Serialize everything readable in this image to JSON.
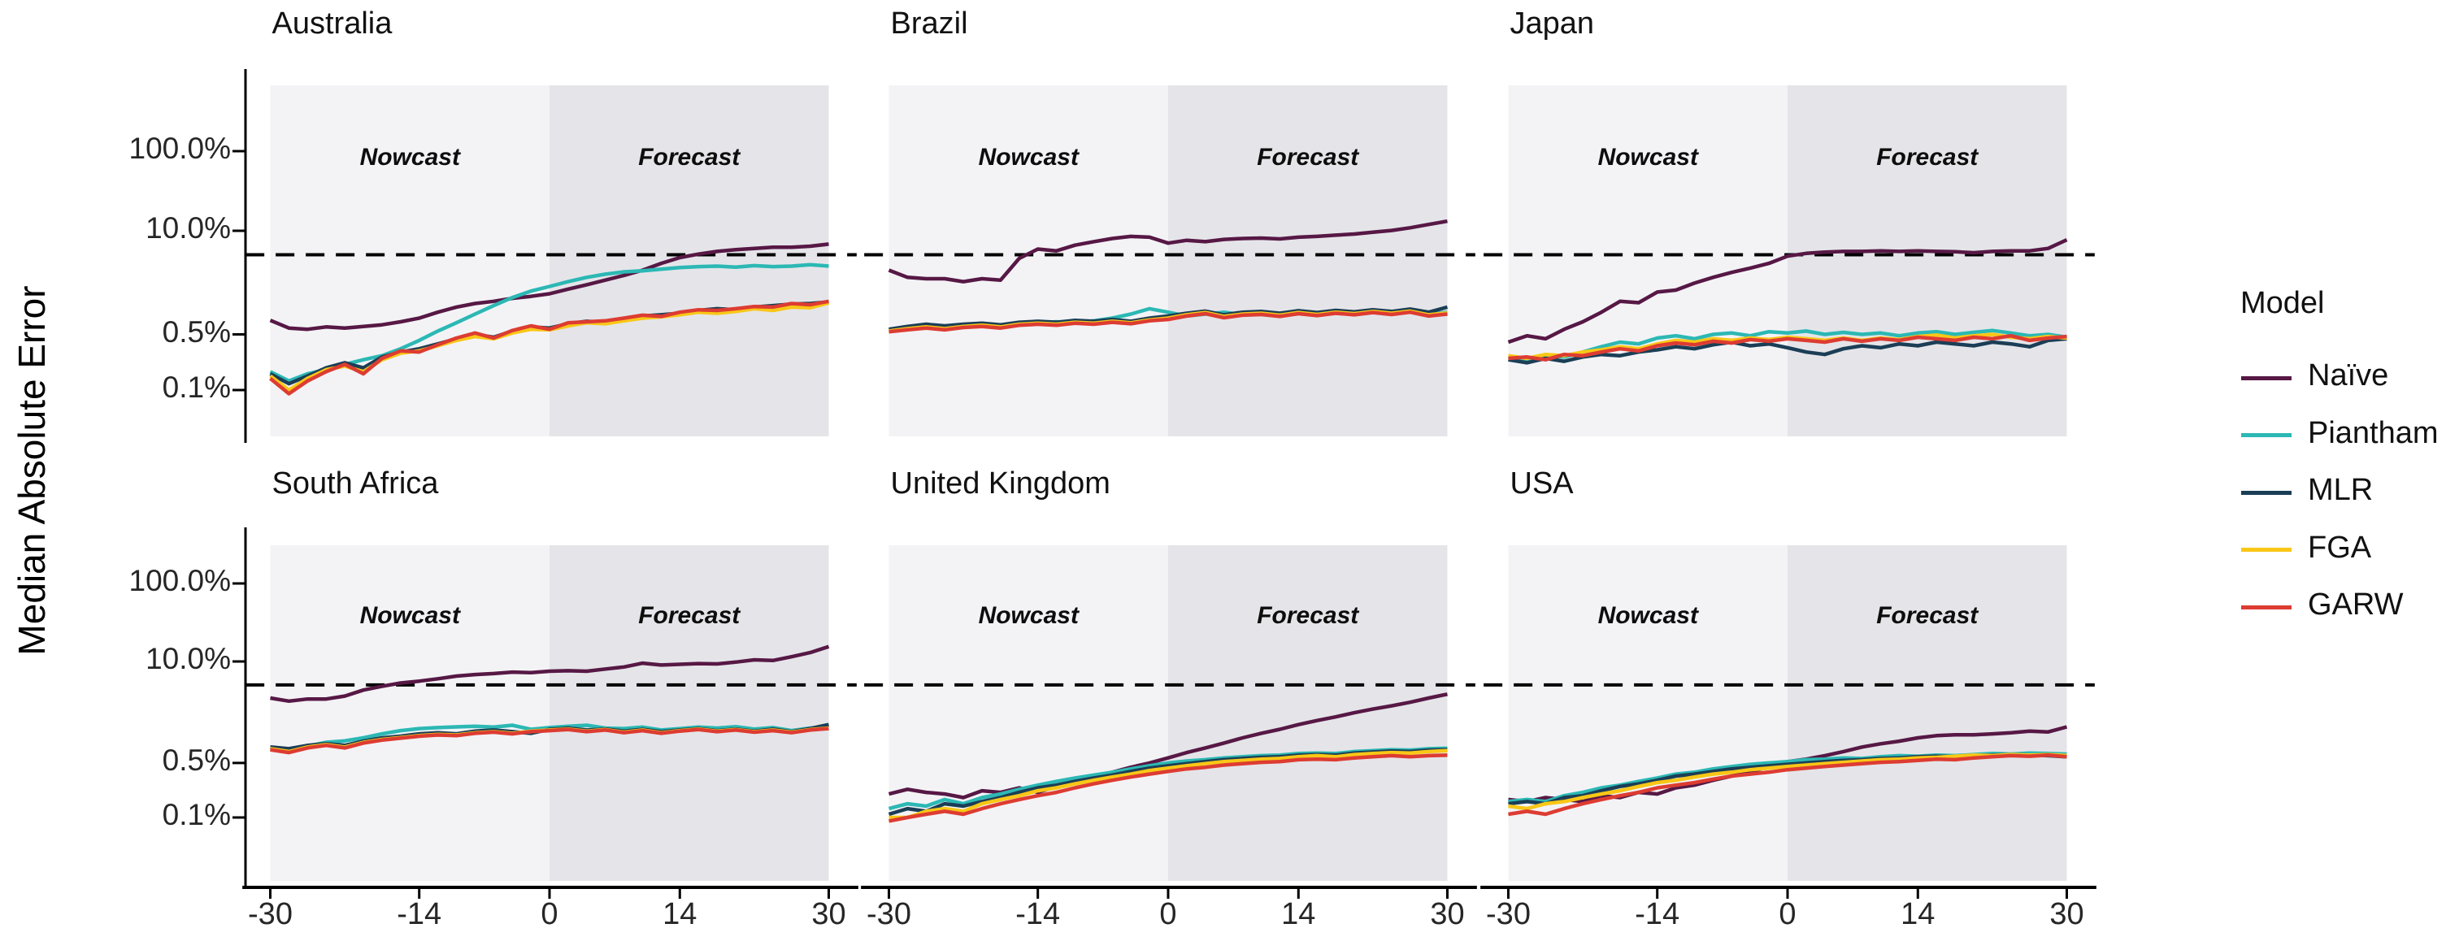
{
  "figure": {
    "y_axis_title": "Median Absolute Error",
    "legend": {
      "title": "Model"
    },
    "region_labels": {
      "nowcast": "Nowcast",
      "forecast": "Forecast"
    },
    "y_ticks": [
      {
        "label": "100.0%",
        "value": 100
      },
      {
        "label": "10.0%",
        "value": 10
      },
      {
        "label": "0.5%",
        "value": 0.5
      },
      {
        "label": "0.1%",
        "value": 0.1
      }
    ],
    "x_ticks": [
      {
        "label": "-30",
        "value": -30
      },
      {
        "label": "-14",
        "value": -14
      },
      {
        "label": "0",
        "value": 0
      },
      {
        "label": "14",
        "value": 14
      },
      {
        "label": "30",
        "value": 30
      }
    ],
    "colors": {
      "nowcast_bg": "#f3f3f6",
      "forecast_bg": "#e5e5e9",
      "axis": "#000000",
      "threshold_line": "#000000"
    }
  },
  "chart_data": {
    "type": "line",
    "y_scale": "log10",
    "y_unit": "percent",
    "xlabel": "",
    "ylabel": "Median Absolute Error",
    "x_range": [
      -30,
      30
    ],
    "threshold_percent": 5,
    "legend_position": "right",
    "x": [
      -30,
      -28,
      -26,
      -24,
      -22,
      -20,
      -18,
      -16,
      -14,
      -12,
      -10,
      -8,
      -6,
      -4,
      -2,
      0,
      2,
      4,
      6,
      8,
      10,
      12,
      14,
      16,
      18,
      20,
      22,
      24,
      26,
      28,
      30
    ],
    "series_order": [
      "Naïve",
      "Piantham",
      "MLR",
      "FGA",
      "GARW"
    ],
    "series_colors": {
      "Naïve": "#571845",
      "Piantham": "#2cb8b4",
      "MLR": "#1b3e56",
      "FGA": "#f9c716",
      "GARW": "#dd3c32"
    },
    "panels": [
      {
        "title": "Australia",
        "series": {
          "Naïve": [
            0.75,
            0.6,
            0.58,
            0.62,
            0.6,
            0.63,
            0.66,
            0.72,
            0.8,
            0.95,
            1.1,
            1.22,
            1.3,
            1.42,
            1.5,
            1.62,
            1.85,
            2.1,
            2.4,
            2.75,
            3.2,
            3.9,
            4.6,
            5.1,
            5.5,
            5.8,
            6.0,
            6.2,
            6.2,
            6.4,
            6.8
          ],
          "Piantham": [
            0.17,
            0.13,
            0.16,
            0.18,
            0.21,
            0.24,
            0.27,
            0.33,
            0.42,
            0.55,
            0.7,
            0.9,
            1.15,
            1.45,
            1.75,
            2.0,
            2.3,
            2.6,
            2.85,
            3.05,
            3.15,
            3.3,
            3.45,
            3.55,
            3.6,
            3.5,
            3.65,
            3.55,
            3.6,
            3.75,
            3.6
          ],
          "MLR": [
            0.16,
            0.12,
            0.15,
            0.19,
            0.22,
            0.19,
            0.26,
            0.3,
            0.33,
            0.38,
            0.44,
            0.5,
            0.46,
            0.55,
            0.62,
            0.6,
            0.68,
            0.73,
            0.71,
            0.78,
            0.85,
            0.88,
            0.92,
            1.0,
            1.05,
            1.02,
            1.1,
            1.15,
            1.2,
            1.22,
            1.28
          ],
          "FGA": [
            0.15,
            0.1,
            0.14,
            0.18,
            0.2,
            0.17,
            0.24,
            0.29,
            0.31,
            0.36,
            0.42,
            0.47,
            0.44,
            0.52,
            0.58,
            0.57,
            0.64,
            0.7,
            0.68,
            0.74,
            0.8,
            0.83,
            0.88,
            0.95,
            0.92,
            0.97,
            1.05,
            1.0,
            1.1,
            1.08,
            1.24
          ],
          "GARW": [
            0.14,
            0.09,
            0.13,
            0.17,
            0.21,
            0.16,
            0.25,
            0.31,
            0.3,
            0.37,
            0.45,
            0.52,
            0.45,
            0.56,
            0.64,
            0.58,
            0.7,
            0.72,
            0.74,
            0.8,
            0.87,
            0.84,
            0.95,
            1.02,
            1.0,
            1.05,
            1.12,
            1.1,
            1.22,
            1.18,
            1.3
          ]
        }
      },
      {
        "title": "Brazil",
        "series": {
          "Naïve": [
            3.2,
            2.6,
            2.5,
            2.5,
            2.3,
            2.5,
            2.4,
            4.5,
            5.9,
            5.6,
            6.6,
            7.3,
            8.0,
            8.5,
            8.3,
            7.0,
            7.6,
            7.3,
            7.8,
            8.0,
            8.1,
            7.9,
            8.3,
            8.5,
            8.8,
            9.1,
            9.6,
            10.1,
            10.9,
            12.0,
            13.2
          ],
          "Piantham": [
            0.56,
            0.6,
            0.63,
            0.6,
            0.64,
            0.66,
            0.63,
            0.68,
            0.7,
            0.72,
            0.7,
            0.74,
            0.8,
            0.9,
            1.05,
            0.95,
            0.85,
            0.9,
            0.95,
            0.88,
            0.92,
            0.88,
            0.94,
            0.9,
            0.96,
            0.92,
            0.96,
            0.92,
            0.97,
            0.9,
            0.95
          ],
          "MLR": [
            0.58,
            0.63,
            0.67,
            0.64,
            0.67,
            0.69,
            0.66,
            0.71,
            0.73,
            0.71,
            0.75,
            0.73,
            0.77,
            0.73,
            0.8,
            0.85,
            0.92,
            0.98,
            0.88,
            0.95,
            0.97,
            0.92,
            0.99,
            0.94,
            1.0,
            0.96,
            1.02,
            0.97,
            1.04,
            0.95,
            1.1
          ],
          "FGA": [
            0.55,
            0.59,
            0.62,
            0.59,
            0.63,
            0.65,
            0.62,
            0.67,
            0.69,
            0.67,
            0.71,
            0.69,
            0.73,
            0.7,
            0.76,
            0.8,
            0.88,
            0.94,
            0.84,
            0.9,
            0.92,
            0.87,
            0.94,
            0.89,
            0.95,
            0.91,
            0.97,
            0.92,
            0.98,
            0.88,
            0.93
          ],
          "GARW": [
            0.54,
            0.57,
            0.6,
            0.57,
            0.61,
            0.63,
            0.6,
            0.65,
            0.67,
            0.65,
            0.69,
            0.67,
            0.71,
            0.68,
            0.74,
            0.77,
            0.85,
            0.91,
            0.81,
            0.87,
            0.89,
            0.84,
            0.91,
            0.86,
            0.92,
            0.88,
            0.94,
            0.89,
            0.95,
            0.85,
            0.9
          ]
        }
      },
      {
        "title": "Japan",
        "series": {
          "Naïve": [
            0.4,
            0.48,
            0.44,
            0.58,
            0.72,
            0.95,
            1.3,
            1.25,
            1.7,
            1.8,
            2.2,
            2.6,
            3.0,
            3.4,
            3.9,
            4.8,
            5.2,
            5.4,
            5.5,
            5.5,
            5.6,
            5.5,
            5.6,
            5.5,
            5.45,
            5.3,
            5.5,
            5.6,
            5.6,
            6.0,
            7.7
          ],
          "Piantham": [
            0.26,
            0.24,
            0.27,
            0.26,
            0.3,
            0.35,
            0.4,
            0.38,
            0.45,
            0.48,
            0.44,
            0.5,
            0.52,
            0.48,
            0.54,
            0.52,
            0.55,
            0.5,
            0.53,
            0.5,
            0.52,
            0.48,
            0.52,
            0.54,
            0.5,
            0.53,
            0.56,
            0.52,
            0.48,
            0.5,
            0.46
          ],
          "MLR": [
            0.24,
            0.22,
            0.25,
            0.23,
            0.26,
            0.28,
            0.27,
            0.3,
            0.32,
            0.35,
            0.33,
            0.37,
            0.4,
            0.36,
            0.38,
            0.34,
            0.3,
            0.28,
            0.33,
            0.36,
            0.34,
            0.38,
            0.36,
            0.4,
            0.38,
            0.36,
            0.4,
            0.38,
            0.35,
            0.42,
            0.44
          ],
          "FGA": [
            0.27,
            0.25,
            0.28,
            0.27,
            0.3,
            0.32,
            0.35,
            0.33,
            0.38,
            0.42,
            0.4,
            0.44,
            0.42,
            0.45,
            0.43,
            0.46,
            0.44,
            0.42,
            0.45,
            0.42,
            0.45,
            0.43,
            0.47,
            0.49,
            0.45,
            0.48,
            0.5,
            0.46,
            0.44,
            0.47,
            0.45
          ],
          "GARW": [
            0.25,
            0.26,
            0.24,
            0.28,
            0.27,
            0.3,
            0.33,
            0.31,
            0.36,
            0.39,
            0.37,
            0.41,
            0.39,
            0.43,
            0.41,
            0.44,
            0.42,
            0.4,
            0.44,
            0.41,
            0.44,
            0.42,
            0.46,
            0.44,
            0.42,
            0.46,
            0.44,
            0.48,
            0.42,
            0.45,
            0.47
          ]
        }
      },
      {
        "title": "South Africa",
        "series": {
          "Naïve": [
            3.4,
            3.1,
            3.3,
            3.3,
            3.6,
            4.3,
            4.8,
            5.3,
            5.6,
            6.0,
            6.5,
            6.8,
            7.0,
            7.3,
            7.2,
            7.5,
            7.6,
            7.5,
            8.0,
            8.5,
            9.5,
            9.0,
            9.2,
            9.4,
            9.3,
            9.8,
            10.5,
            10.3,
            11.5,
            13.0,
            15.5
          ],
          "Piantham": [
            0.78,
            0.74,
            0.82,
            0.92,
            0.96,
            1.05,
            1.18,
            1.3,
            1.38,
            1.42,
            1.45,
            1.48,
            1.44,
            1.52,
            1.35,
            1.42,
            1.48,
            1.52,
            1.4,
            1.38,
            1.44,
            1.32,
            1.38,
            1.44,
            1.4,
            1.46,
            1.36,
            1.42,
            1.3,
            1.4,
            1.42
          ],
          "MLR": [
            0.8,
            0.76,
            0.84,
            0.88,
            0.84,
            0.95,
            1.05,
            1.1,
            1.18,
            1.22,
            1.18,
            1.28,
            1.32,
            1.26,
            1.2,
            1.35,
            1.4,
            1.32,
            1.36,
            1.28,
            1.35,
            1.26,
            1.32,
            1.38,
            1.3,
            1.36,
            1.28,
            1.36,
            1.26,
            1.38,
            1.55
          ],
          "FGA": [
            0.76,
            0.7,
            0.8,
            0.86,
            0.8,
            0.92,
            1.0,
            1.06,
            1.12,
            1.16,
            1.14,
            1.22,
            1.26,
            1.2,
            1.28,
            1.32,
            1.36,
            1.28,
            1.34,
            1.24,
            1.32,
            1.22,
            1.3,
            1.36,
            1.28,
            1.34,
            1.26,
            1.32,
            1.24,
            1.34,
            1.4
          ],
          "GARW": [
            0.74,
            0.68,
            0.78,
            0.84,
            0.78,
            0.9,
            0.98,
            1.04,
            1.1,
            1.14,
            1.12,
            1.2,
            1.24,
            1.18,
            1.26,
            1.3,
            1.34,
            1.26,
            1.32,
            1.22,
            1.3,
            1.2,
            1.28,
            1.34,
            1.26,
            1.32,
            1.24,
            1.3,
            1.22,
            1.32,
            1.38
          ]
        }
      },
      {
        "title": "United Kingdom",
        "series": {
          "Naïve": [
            0.2,
            0.23,
            0.21,
            0.2,
            0.18,
            0.22,
            0.21,
            0.24,
            0.21,
            0.25,
            0.28,
            0.33,
            0.38,
            0.44,
            0.5,
            0.58,
            0.68,
            0.78,
            0.9,
            1.05,
            1.2,
            1.35,
            1.55,
            1.75,
            1.95,
            2.2,
            2.45,
            2.7,
            3.0,
            3.4,
            3.8
          ],
          "Piantham": [
            0.13,
            0.15,
            0.14,
            0.17,
            0.15,
            0.18,
            0.2,
            0.23,
            0.26,
            0.29,
            0.32,
            0.35,
            0.38,
            0.42,
            0.46,
            0.5,
            0.53,
            0.55,
            0.58,
            0.6,
            0.62,
            0.63,
            0.66,
            0.67,
            0.66,
            0.7,
            0.72,
            0.74,
            0.73,
            0.76,
            0.77
          ],
          "MLR": [
            0.11,
            0.13,
            0.12,
            0.15,
            0.14,
            0.16,
            0.18,
            0.21,
            0.24,
            0.26,
            0.29,
            0.32,
            0.35,
            0.39,
            0.43,
            0.46,
            0.49,
            0.52,
            0.55,
            0.57,
            0.59,
            0.6,
            0.63,
            0.64,
            0.63,
            0.67,
            0.69,
            0.71,
            0.7,
            0.73,
            0.74
          ],
          "FGA": [
            0.1,
            0.1,
            0.12,
            0.13,
            0.12,
            0.15,
            0.17,
            0.19,
            0.22,
            0.24,
            0.27,
            0.3,
            0.33,
            0.36,
            0.4,
            0.43,
            0.46,
            0.49,
            0.52,
            0.54,
            0.56,
            0.57,
            0.6,
            0.62,
            0.6,
            0.64,
            0.66,
            0.68,
            0.67,
            0.7,
            0.72
          ],
          "GARW": [
            0.09,
            0.1,
            0.11,
            0.12,
            0.11,
            0.13,
            0.15,
            0.17,
            0.19,
            0.21,
            0.24,
            0.27,
            0.3,
            0.33,
            0.36,
            0.39,
            0.42,
            0.44,
            0.47,
            0.49,
            0.51,
            0.52,
            0.55,
            0.56,
            0.55,
            0.58,
            0.6,
            0.62,
            0.6,
            0.62,
            0.63
          ]
        }
      },
      {
        "title": "USA",
        "series": {
          "Naïve": [
            0.17,
            0.16,
            0.18,
            0.17,
            0.16,
            0.19,
            0.18,
            0.21,
            0.2,
            0.24,
            0.26,
            0.3,
            0.34,
            0.38,
            0.45,
            0.52,
            0.56,
            0.62,
            0.7,
            0.8,
            0.88,
            0.95,
            1.05,
            1.12,
            1.15,
            1.15,
            1.18,
            1.22,
            1.28,
            1.25,
            1.45
          ],
          "Piantham": [
            0.16,
            0.17,
            0.16,
            0.19,
            0.21,
            0.24,
            0.26,
            0.29,
            0.32,
            0.36,
            0.38,
            0.42,
            0.45,
            0.48,
            0.5,
            0.52,
            0.55,
            0.56,
            0.58,
            0.57,
            0.6,
            0.62,
            0.61,
            0.63,
            0.62,
            0.64,
            0.66,
            0.65,
            0.67,
            0.66,
            0.65
          ],
          "MLR": [
            0.15,
            0.16,
            0.15,
            0.18,
            0.19,
            0.22,
            0.25,
            0.27,
            0.3,
            0.34,
            0.36,
            0.39,
            0.42,
            0.44,
            0.46,
            0.48,
            0.5,
            0.52,
            0.54,
            0.55,
            0.57,
            0.58,
            0.6,
            0.61,
            0.6,
            0.62,
            0.63,
            0.64,
            0.63,
            0.62,
            0.6
          ],
          "FGA": [
            0.14,
            0.13,
            0.15,
            0.16,
            0.18,
            0.2,
            0.22,
            0.25,
            0.28,
            0.3,
            0.33,
            0.36,
            0.38,
            0.41,
            0.43,
            0.45,
            0.47,
            0.49,
            0.51,
            0.53,
            0.55,
            0.56,
            0.58,
            0.59,
            0.61,
            0.63,
            0.62,
            0.64,
            0.63,
            0.64,
            0.62
          ],
          "GARW": [
            0.11,
            0.12,
            0.11,
            0.13,
            0.15,
            0.17,
            0.19,
            0.21,
            0.24,
            0.26,
            0.28,
            0.31,
            0.34,
            0.36,
            0.38,
            0.41,
            0.43,
            0.45,
            0.47,
            0.49,
            0.51,
            0.52,
            0.54,
            0.56,
            0.55,
            0.58,
            0.6,
            0.62,
            0.61,
            0.63,
            0.6
          ]
        }
      }
    ]
  }
}
